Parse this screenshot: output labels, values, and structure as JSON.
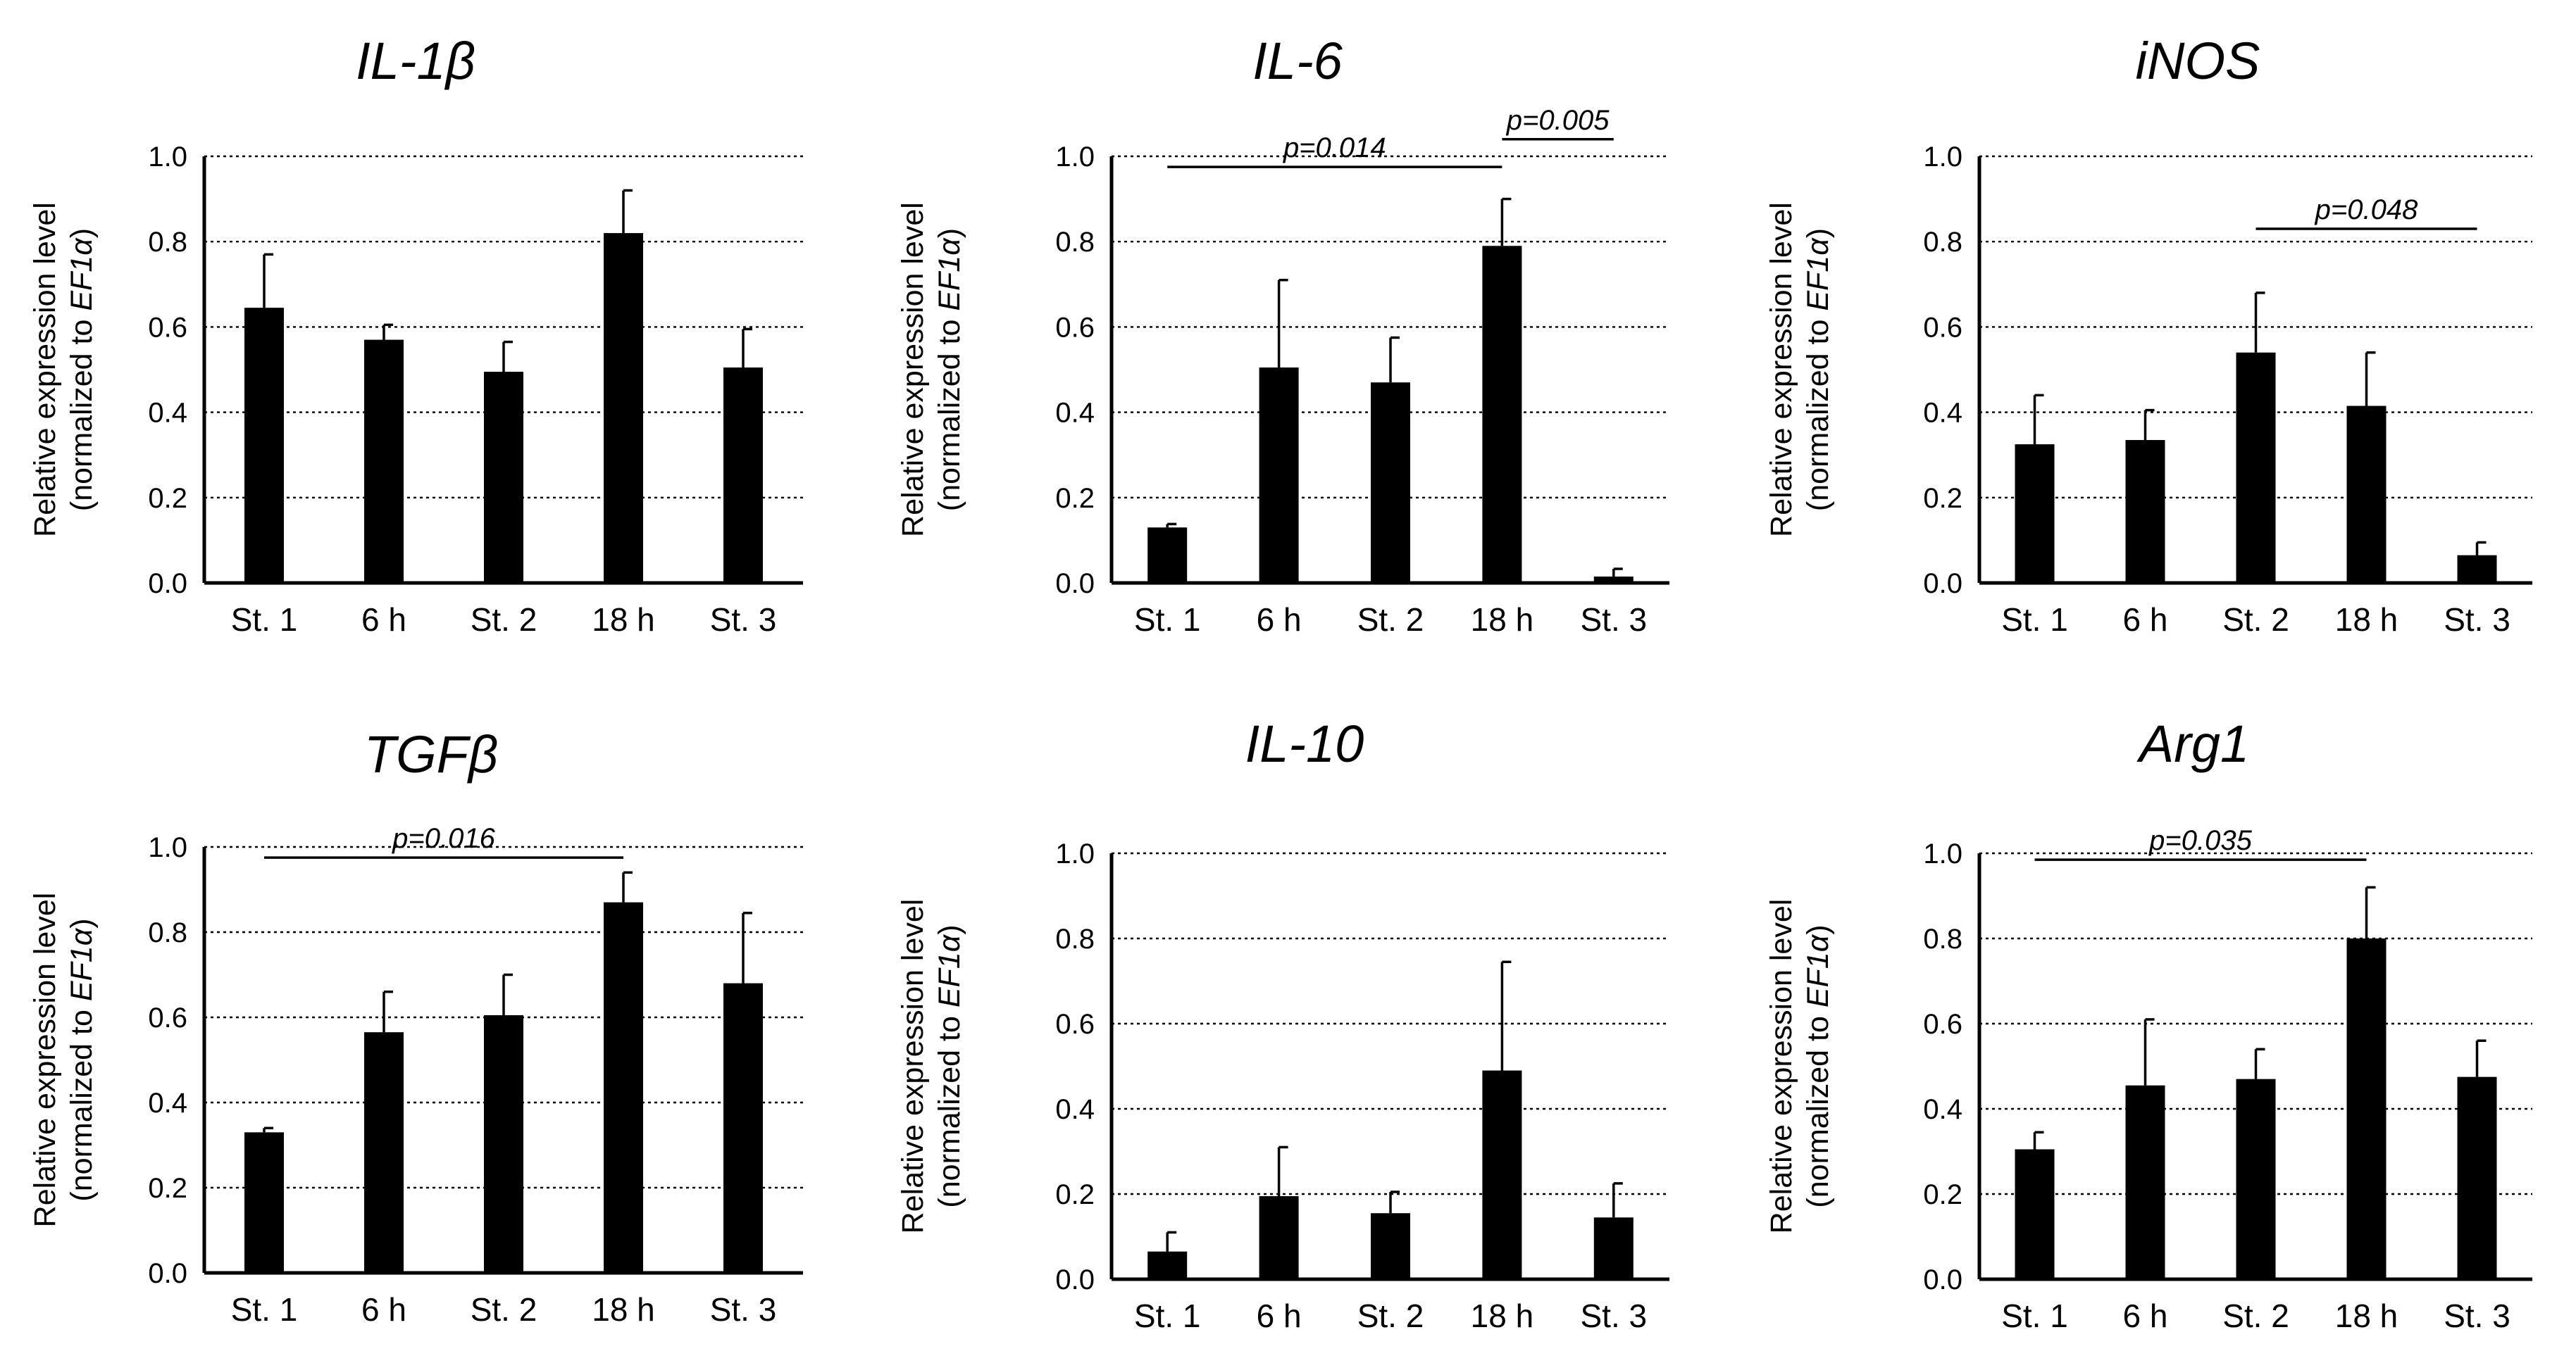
{
  "figure": {
    "ylabel_line1": "Relative expression level",
    "ylabel_line2_prefix": "(normalized to ",
    "ylabel_line2_gene": "EF1α",
    "ylabel_line2_suffix": ")",
    "bar_color": "#000000"
  },
  "chart_data": [
    {
      "type": "bar",
      "title": "IL-1β",
      "categories": [
        "St. 1",
        "6 h",
        "St. 2",
        "18 h",
        "St. 3"
      ],
      "values": [
        0.645,
        0.57,
        0.495,
        0.82,
        0.505
      ],
      "errors": [
        0.125,
        0.035,
        0.07,
        0.1,
        0.09
      ],
      "ylim": [
        0,
        1.0
      ],
      "yticks": [
        "0.0",
        "0.2",
        "0.4",
        "0.6",
        "0.8",
        "1.0"
      ],
      "significance": []
    },
    {
      "type": "bar",
      "title": "IL-6",
      "categories": [
        "St. 1",
        "6 h",
        "St. 2",
        "18 h",
        "St. 3"
      ],
      "values": [
        0.13,
        0.505,
        0.47,
        0.79,
        0.015
      ],
      "errors": [
        0.008,
        0.205,
        0.105,
        0.11,
        0.018
      ],
      "ylim": [
        0,
        1.0
      ],
      "yticks": [
        "0.0",
        "0.2",
        "0.4",
        "0.6",
        "0.8",
        "1.0"
      ],
      "significance": [
        {
          "from": 0,
          "to": 3,
          "label": "p=0.014",
          "y": 0.975
        },
        {
          "from": 3,
          "to": 4,
          "label": "p=0.005",
          "y": 1.04
        }
      ]
    },
    {
      "type": "bar",
      "title": "iNOS",
      "categories": [
        "St. 1",
        "6 h",
        "St. 2",
        "18 h",
        "St. 3"
      ],
      "values": [
        0.325,
        0.335,
        0.54,
        0.415,
        0.065
      ],
      "errors": [
        0.115,
        0.07,
        0.14,
        0.125,
        0.03
      ],
      "ylim": [
        0,
        1.0
      ],
      "yticks": [
        "0.0",
        "0.2",
        "0.4",
        "0.6",
        "0.8",
        "1.0"
      ],
      "significance": [
        {
          "from": 2,
          "to": 4,
          "label": "p=0.048",
          "y": 0.83
        }
      ]
    },
    {
      "type": "bar",
      "title": "TGFβ",
      "categories": [
        "St. 1",
        "6 h",
        "St. 2",
        "18 h",
        "St. 3"
      ],
      "values": [
        0.33,
        0.565,
        0.605,
        0.87,
        0.68
      ],
      "errors": [
        0.01,
        0.095,
        0.095,
        0.07,
        0.165
      ],
      "ylim": [
        0,
        1.0
      ],
      "yticks": [
        "0.0",
        "0.2",
        "0.4",
        "0.6",
        "0.8",
        "1.0"
      ],
      "significance": [
        {
          "from": 0,
          "to": 3,
          "label": "p=0.016",
          "y": 0.975
        }
      ]
    },
    {
      "type": "bar",
      "title": "IL-10",
      "categories": [
        "St. 1",
        "6 h",
        "St. 2",
        "18 h",
        "St. 3"
      ],
      "values": [
        0.065,
        0.195,
        0.155,
        0.49,
        0.145
      ],
      "errors": [
        0.045,
        0.115,
        0.05,
        0.255,
        0.08
      ],
      "ylim": [
        0,
        1.0
      ],
      "yticks": [
        "0.0",
        "0.2",
        "0.4",
        "0.6",
        "0.8",
        "1.0"
      ],
      "significance": []
    },
    {
      "type": "bar",
      "title": "Arg1",
      "categories": [
        "St. 1",
        "6 h",
        "St. 2",
        "18 h",
        "St. 3"
      ],
      "values": [
        0.305,
        0.455,
        0.47,
        0.8,
        0.475
      ],
      "errors": [
        0.04,
        0.155,
        0.07,
        0.12,
        0.085
      ],
      "ylim": [
        0,
        1.0
      ],
      "yticks": [
        "0.0",
        "0.2",
        "0.4",
        "0.6",
        "0.8",
        "1.0"
      ],
      "significance": [
        {
          "from": 0,
          "to": 3,
          "label": "p=0.035",
          "y": 0.985
        }
      ]
    }
  ]
}
